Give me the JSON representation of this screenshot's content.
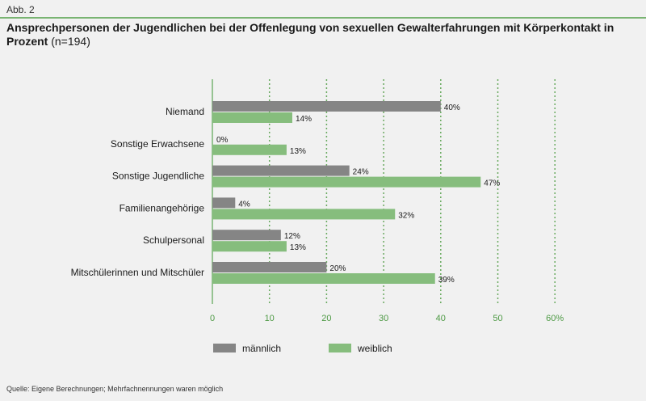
{
  "figure_label": "Abb. 2",
  "title": "Ansprechpersonen der Jugendlichen bei der Offenlegung von sexuellen Gewalterfahrungen mit Körperkontakt in Prozent",
  "title_note": "(n=194)",
  "footnote": "Quelle: Eigene Berechnungen; Mehrfachnennungen waren möglich",
  "colors": {
    "maennlich": "#858585",
    "weiblich": "#86bd7d",
    "axis": "#79b472",
    "grid": "#6aaa60",
    "tick_text": "#4e9a45"
  },
  "chart_data": {
    "type": "bar",
    "orientation": "horizontal",
    "categories": [
      "Niemand",
      "Sonstige Erwachsene",
      "Sonstige Jugendliche",
      "Familienangehörige",
      "Schulpersonal",
      "Mitschülerinnen und Mitschüler"
    ],
    "series": [
      {
        "name": "männlich",
        "values": [
          40,
          0,
          24,
          4,
          12,
          20
        ],
        "labels": [
          "40%",
          "0%",
          "24%",
          "4%",
          "12%",
          "20%"
        ]
      },
      {
        "name": "weiblich",
        "values": [
          14,
          13,
          47,
          32,
          13,
          39
        ],
        "labels": [
          "14%",
          "13%",
          "47%",
          "32%",
          "13%",
          "39%"
        ]
      }
    ],
    "xticks": [
      "0",
      "10",
      "20",
      "30",
      "40",
      "50",
      "60%"
    ],
    "xlim": [
      0,
      60
    ],
    "grid": true,
    "legend_position": "bottom"
  }
}
